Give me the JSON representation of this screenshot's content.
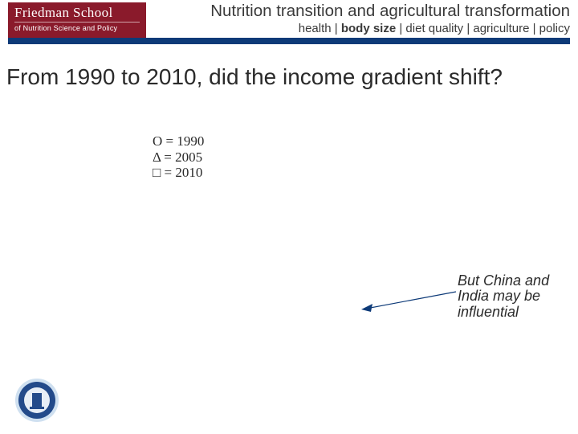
{
  "header": {
    "logo_main": "Friedman School",
    "logo_sub": "of Nutrition Science and Policy",
    "title": "Nutrition transition and agricultural transformation",
    "nav": {
      "items": [
        "health",
        "body size",
        "diet quality",
        "agriculture",
        "policy"
      ],
      "separator": " | ",
      "active_index": 1
    },
    "logo_bg": "#8a1a2b",
    "bar_color": "#0d3a78"
  },
  "question": "From 1990 to 2010, did the income gradient shift?",
  "legend": [
    {
      "marker": "O",
      "label": "= 1990"
    },
    {
      "marker": "Δ",
      "label": "= 2005"
    },
    {
      "marker": "□",
      "label": "= 2010"
    }
  ],
  "note_text": "But China and India may be influential",
  "arrow": {
    "color": "#0d3a78",
    "stroke_width": 1.2
  },
  "seal": {
    "outer_fill": "#cfe0f0",
    "ring_fill": "#234a8a",
    "inner_fill": "#e8eef6",
    "detail_fill": "#234a8a"
  }
}
